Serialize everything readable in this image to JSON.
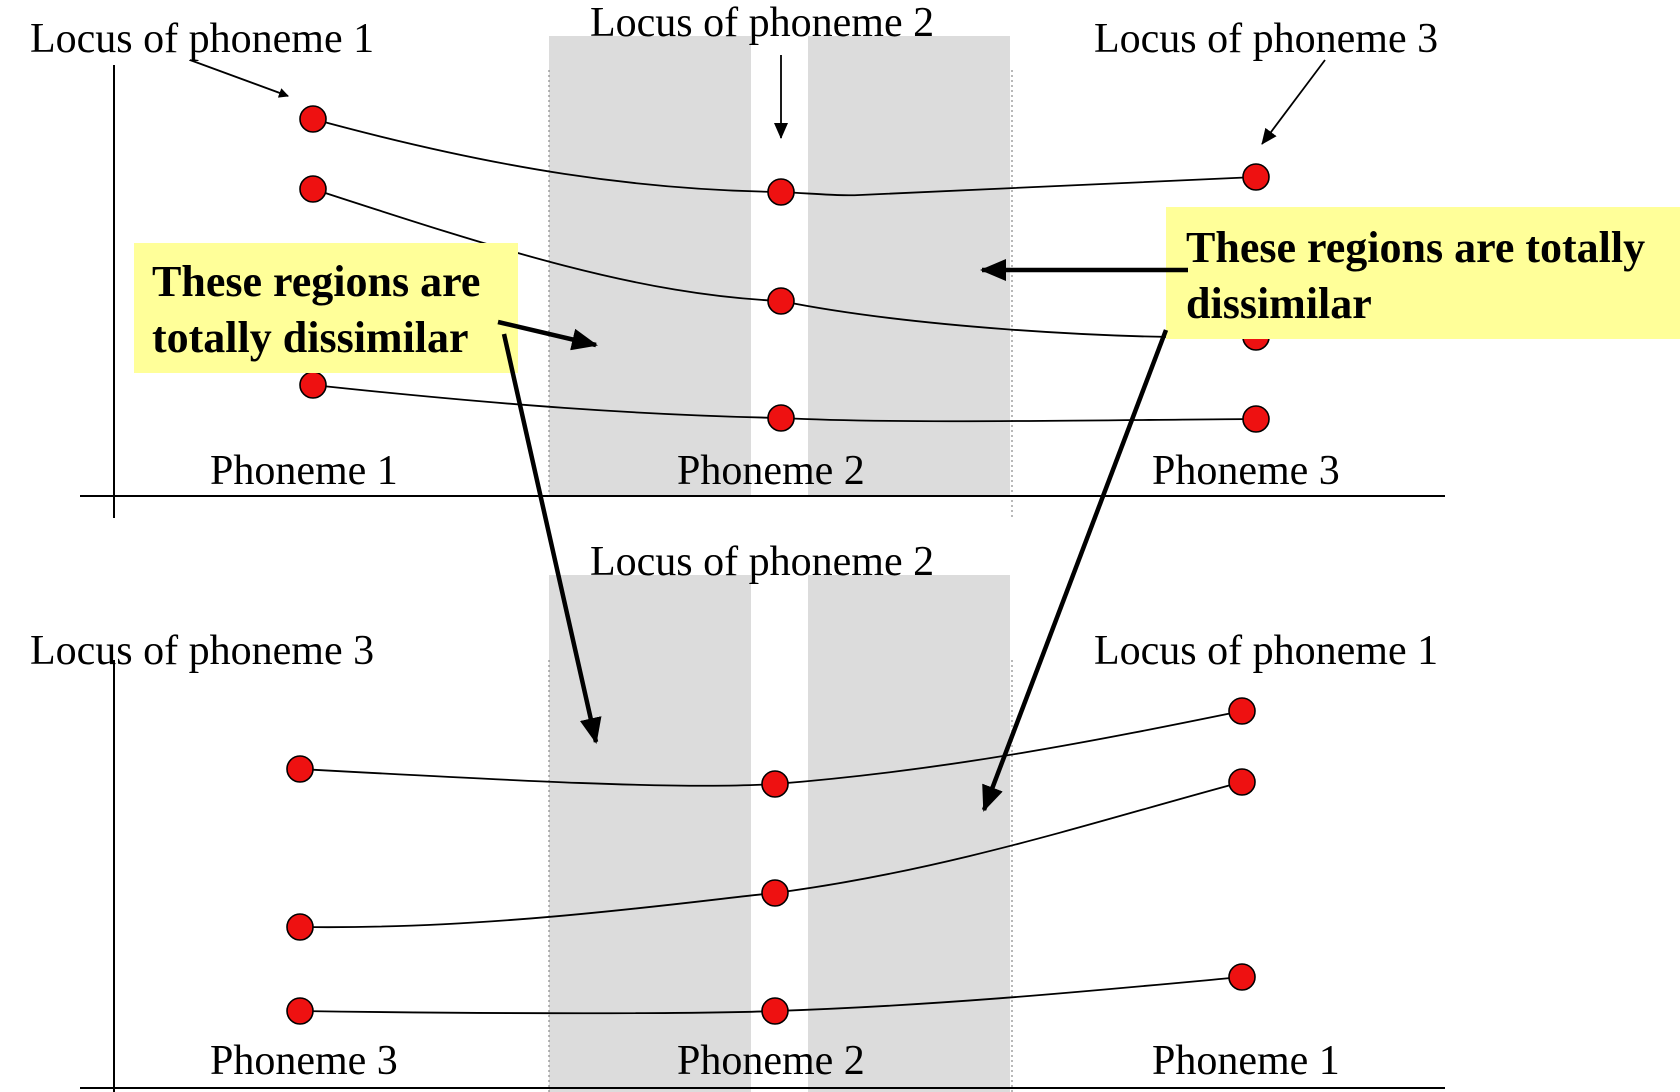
{
  "top_panel": {
    "locus_labels": [
      "Locus of phoneme 1",
      "Locus of phoneme 2",
      "Locus of phoneme 3"
    ],
    "phoneme_labels": [
      "Phoneme 1",
      "Phoneme 2",
      "Phoneme 3"
    ]
  },
  "bottom_panel": {
    "locus_labels": [
      "Locus of phoneme 3",
      "Locus of phoneme 2",
      "Locus of phoneme 1"
    ],
    "phoneme_labels": [
      "Phoneme 3",
      "Phoneme 2",
      "Phoneme 1"
    ]
  },
  "callouts": [
    {
      "lines": [
        "These regions are",
        "totally dissimilar"
      ]
    },
    {
      "lines": [
        "These regions are totally",
        "dissimilar"
      ]
    }
  ],
  "colors": {
    "dot": "#ee1111",
    "band": "#dcdcdc",
    "callout_bg": "#ffff99"
  }
}
